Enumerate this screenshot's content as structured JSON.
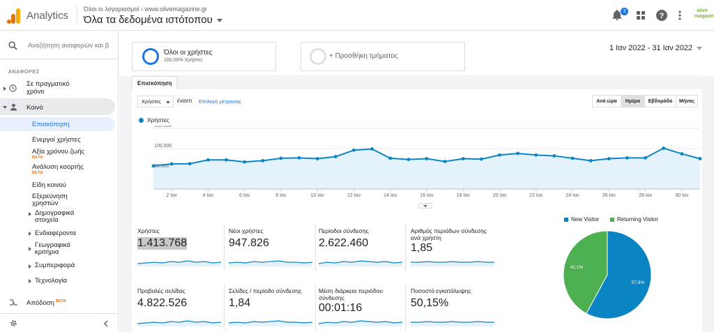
{
  "app": {
    "name": "Analytics"
  },
  "header": {
    "breadcrumb": "Όλοι οι λογαριασμοί › www.olivemagazine.gr",
    "property": "Όλα τα δεδομένα ιστότοπου",
    "notification_count": "3",
    "account_logo": "olive magazine"
  },
  "sidebar": {
    "search_placeholder": "Αναζήτηση αναφορών και β",
    "section": "ΑΝΑΦΟΡΕΣ",
    "realtime": "Σε πραγματικό χρόνο",
    "audience": "Κοινό",
    "subitems": {
      "overview": "Επισκόπηση",
      "active_users": "Ενεργοί χρήστες",
      "ltv": "Αξία χρόνου ζωής",
      "cohort": "Ανάλυση κοορτής",
      "audiences": "Είδη κοινού",
      "explorer": "Εξερεύνηση χρηστών",
      "demographics": "Δημογραφικά στοιχεία",
      "interests": "Ενδιαφέροντα",
      "geo": "Γεωγραφικά κριτήρια",
      "behavior": "Συμπεριφορά",
      "technology": "Τεχνολογία"
    },
    "beta": "BETA",
    "attribution": "Απόδοση"
  },
  "segments": {
    "all_users": "Όλοι οι χρήστες",
    "all_users_pct": "100,00% Χρήστες",
    "add_segment": "+ Προσθήκη τμήματος"
  },
  "date_range": "1 Ιαν 2022 - 31 Ιαν 2022",
  "tab": "Επισκόπηση",
  "controls": {
    "metric": "Χρήστες",
    "vs": "έναντι",
    "choose_metric": "Επιλογή μέτρησης",
    "granularity": [
      "Ανά ώρα",
      "Ημέρα",
      "Εβδομάδα",
      "Μήνας"
    ],
    "active_granularity": "Ημέρα"
  },
  "chart_data": [
    {
      "type": "area",
      "series": [
        {
          "name": "Χρήστες",
          "values": [
            57000,
            62000,
            62500,
            72000,
            72000,
            67000,
            70000,
            76000,
            77000,
            75000,
            80000,
            96000,
            99000,
            76000,
            73000,
            75000,
            68000,
            75000,
            74000,
            84000,
            88000,
            84000,
            82000,
            76000,
            70000,
            75000,
            77000,
            77000,
            101000,
            87000,
            75000
          ]
        }
      ],
      "x": [
        1,
        2,
        3,
        4,
        5,
        6,
        7,
        8,
        9,
        10,
        11,
        12,
        13,
        14,
        15,
        16,
        17,
        18,
        19,
        20,
        21,
        22,
        23,
        24,
        25,
        26,
        27,
        28,
        29,
        30,
        31
      ],
      "x_tick_labels": [
        "2 Ιαν",
        "4 Ιαν",
        "6 Ιαν",
        "8 Ιαν",
        "10 Ιαν",
        "12 Ιαν",
        "14 Ιαν",
        "16 Ιαν",
        "18 Ιαν",
        "20 Ιαν",
        "22 Ιαν",
        "24 Ιαν",
        "26 Ιαν",
        "28 Ιαν",
        "30 Ιαν"
      ],
      "y_tick_labels": [
        "150.000",
        "100.000",
        "50.000"
      ],
      "ylim": [
        0,
        150000
      ],
      "color": "#0b84c3"
    },
    {
      "type": "pie",
      "categories": [
        "New Visitor",
        "Returning Visitor"
      ],
      "values": [
        57.9,
        42.1
      ],
      "labels": [
        "57,9%",
        "42,1%"
      ],
      "colors": [
        "#0b84c3",
        "#4caf50"
      ]
    }
  ],
  "metrics": [
    {
      "label": "Χρήστες",
      "value": "1.413.768"
    },
    {
      "label": "Νέοι χρήστες",
      "value": "947.826"
    },
    {
      "label": "Περίοδοι σύνδεσης",
      "value": "2.622.460"
    },
    {
      "label": "Αριθμός περιόδων σύνδεσης ανά χρήστη",
      "value": "1,85"
    },
    {
      "label": "Προβολές σελίδας",
      "value": "4.822.526"
    },
    {
      "label": "Σελίδες / περίοδο σύνδεσης",
      "value": "1,84"
    },
    {
      "label": "Μέση διάρκεια περιόδου σύνδεσης",
      "value": "00:01:16"
    },
    {
      "label": "Ποσοστό εγκατάλειψης",
      "value": "50,15%"
    }
  ]
}
